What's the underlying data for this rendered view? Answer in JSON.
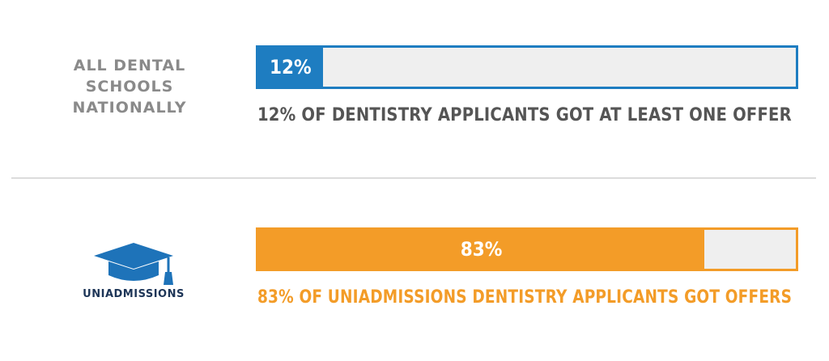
{
  "chart_data": {
    "type": "bar",
    "unit": "%",
    "bars": [
      {
        "category_lines": [
          "ALL DENTAL",
          "SCHOOLS",
          "NATIONALLY"
        ],
        "value": 12,
        "value_label": "12%",
        "caption": "12% OF DENTISTRY APPLICANTS GOT AT LEAST ONE OFFER",
        "color": "#1e7dc1",
        "caption_color": "#555555"
      },
      {
        "category_logo": {
          "icon": "graduation-cap-icon",
          "text_a": "UNI",
          "text_b": "ADMISSIONS"
        },
        "value": 83,
        "value_label": "83%",
        "caption": "83% OF UNIADMISSIONS DENTISTRY APPLICANTS GOT OFFERS",
        "color": "#f39c28",
        "caption_color": "#f39c28"
      }
    ],
    "ylim": [
      0,
      100
    ]
  },
  "colors": {
    "logo_blue": "#1e73b9",
    "logo_dark": "#1d3557"
  }
}
